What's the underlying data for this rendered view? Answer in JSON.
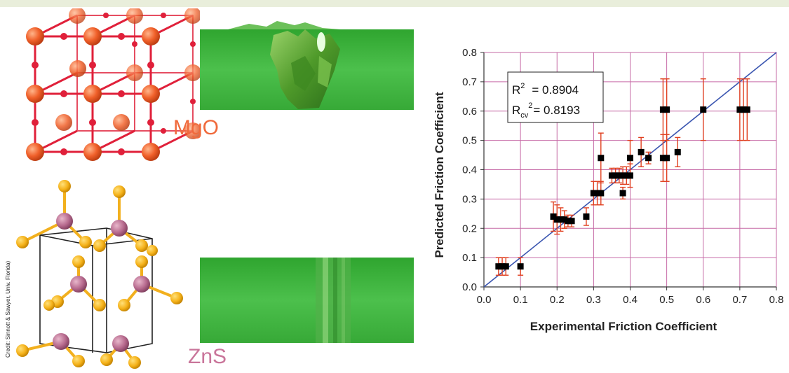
{
  "figure": {
    "credit": "Credit: Sinnott & Sawyer, Univ. Florida)",
    "materials": [
      {
        "label": "MgO",
        "color": "#f06a3c"
      },
      {
        "label": "ZnS",
        "color": "#c9759a"
      }
    ]
  },
  "colors": {
    "grid": "#c66aa6",
    "fit_line": "#3a55b0",
    "error_bars": "#e04020",
    "points": "#000000",
    "surface": "#3cb43c"
  },
  "chart_data": {
    "type": "scatter",
    "title": "",
    "xlabel": "Experimental Friction Coefficient",
    "ylabel": "Predicted Friction Coefficient",
    "xlim": [
      0.0,
      0.8
    ],
    "ylim": [
      0.0,
      0.8
    ],
    "xticks": [
      "0.0",
      "0.1",
      "0.2",
      "0.3",
      "0.4",
      "0.5",
      "0.6",
      "0.7",
      "0.8"
    ],
    "yticks": [
      "0.0",
      "0.1",
      "0.2",
      "0.3",
      "0.4",
      "0.5",
      "0.6",
      "0.7",
      "0.8"
    ],
    "grid": true,
    "fit_line": {
      "x": [
        0.0,
        0.8
      ],
      "y": [
        0.0,
        0.8
      ]
    },
    "stats": {
      "r2_label": "R",
      "r2_sup": "2",
      "r2_value": "= 0.8904",
      "rcv_label": "R",
      "rcv_sub": "cv",
      "rcv_sup": "2",
      "rcv_value": "= 0.8193"
    },
    "points": [
      {
        "x": 0.04,
        "y": 0.07,
        "err": 0.03
      },
      {
        "x": 0.05,
        "y": 0.07,
        "err": 0.03
      },
      {
        "x": 0.06,
        "y": 0.07,
        "err": 0.03
      },
      {
        "x": 0.1,
        "y": 0.07,
        "err": 0.03
      },
      {
        "x": 0.19,
        "y": 0.24,
        "err": 0.05
      },
      {
        "x": 0.2,
        "y": 0.23,
        "err": 0.05
      },
      {
        "x": 0.21,
        "y": 0.23,
        "err": 0.04
      },
      {
        "x": 0.22,
        "y": 0.23,
        "err": 0.03
      },
      {
        "x": 0.23,
        "y": 0.225,
        "err": 0.02
      },
      {
        "x": 0.24,
        "y": 0.225,
        "err": 0.02
      },
      {
        "x": 0.28,
        "y": 0.24,
        "err": 0.03
      },
      {
        "x": 0.3,
        "y": 0.32,
        "err": 0.04
      },
      {
        "x": 0.31,
        "y": 0.32,
        "err": 0.04
      },
      {
        "x": 0.32,
        "y": 0.32,
        "err": 0.04
      },
      {
        "x": 0.32,
        "y": 0.44,
        "err": 0.085
      },
      {
        "x": 0.35,
        "y": 0.38,
        "err": 0.025
      },
      {
        "x": 0.36,
        "y": 0.38,
        "err": 0.025
      },
      {
        "x": 0.37,
        "y": 0.38,
        "err": 0.025
      },
      {
        "x": 0.38,
        "y": 0.32,
        "err": 0.02
      },
      {
        "x": 0.38,
        "y": 0.38,
        "err": 0.03
      },
      {
        "x": 0.39,
        "y": 0.38,
        "err": 0.03
      },
      {
        "x": 0.4,
        "y": 0.44,
        "err": 0.06
      },
      {
        "x": 0.4,
        "y": 0.38,
        "err": 0.04
      },
      {
        "x": 0.43,
        "y": 0.46,
        "err": 0.05
      },
      {
        "x": 0.45,
        "y": 0.44,
        "err": 0.02
      },
      {
        "x": 0.49,
        "y": 0.44,
        "err": 0.08
      },
      {
        "x": 0.5,
        "y": 0.44,
        "err": 0.08
      },
      {
        "x": 0.49,
        "y": 0.605,
        "err": 0.105
      },
      {
        "x": 0.5,
        "y": 0.605,
        "err": 0.105
      },
      {
        "x": 0.53,
        "y": 0.46,
        "err": 0.05
      },
      {
        "x": 0.6,
        "y": 0.605,
        "err": 0.105
      },
      {
        "x": 0.7,
        "y": 0.605,
        "err": 0.105
      },
      {
        "x": 0.71,
        "y": 0.605,
        "err": 0.105
      },
      {
        "x": 0.72,
        "y": 0.605,
        "err": 0.105
      }
    ]
  }
}
